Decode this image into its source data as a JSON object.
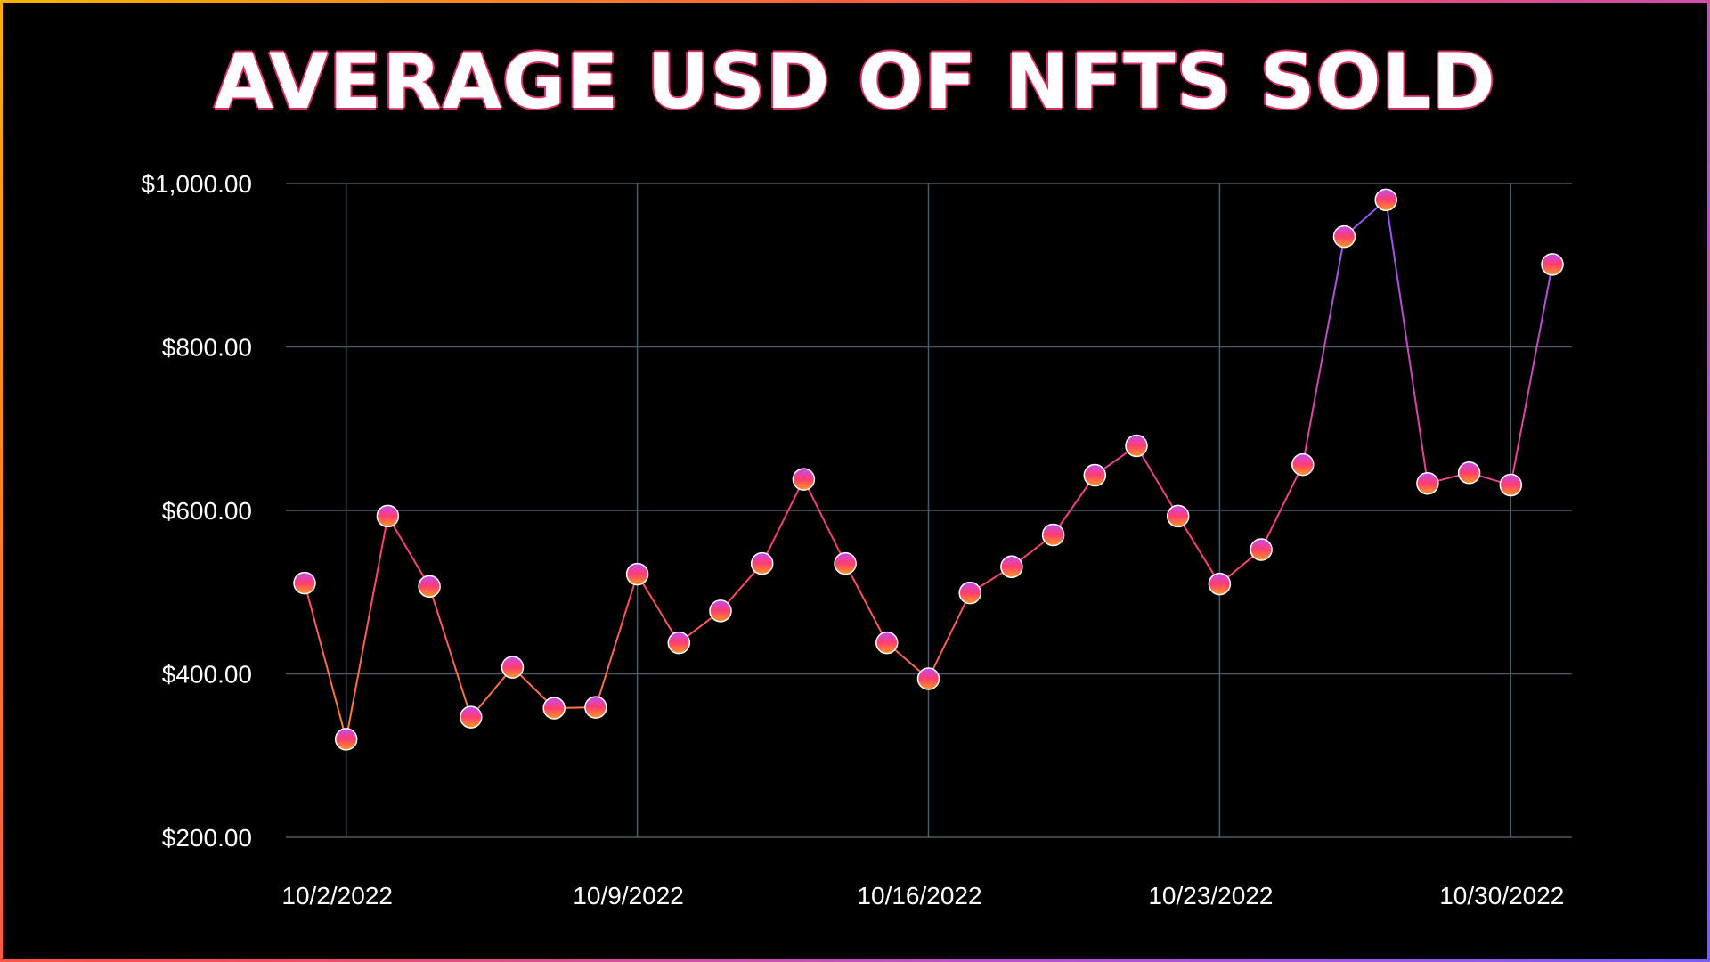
{
  "chart_data": {
    "type": "line",
    "title": "AVERAGE USD OF NFTS SOLD",
    "xlabel": "",
    "ylabel": "",
    "ylim": [
      200,
      1000
    ],
    "xlim": [
      "2022-10-01",
      "2022-10-31"
    ],
    "y_ticks": [
      {
        "value": 1000,
        "label": "$1,000.00"
      },
      {
        "value": 800,
        "label": "$800.00"
      },
      {
        "value": 600,
        "label": "$600.00"
      },
      {
        "value": 400,
        "label": "$400.00"
      },
      {
        "value": 200,
        "label": "$200.00"
      }
    ],
    "x_ticks": [
      {
        "value": "2022-10-02",
        "label": "10/2/2022"
      },
      {
        "value": "2022-10-09",
        "label": "10/9/2022"
      },
      {
        "value": "2022-10-16",
        "label": "10/16/2022"
      },
      {
        "value": "2022-10-23",
        "label": "10/23/2022"
      },
      {
        "value": "2022-10-30",
        "label": "10/30/2022"
      }
    ],
    "grid": true,
    "legend": "none",
    "series": [
      {
        "x": [
          "2022-10-01",
          "2022-10-02",
          "2022-10-03",
          "2022-10-04",
          "2022-10-05",
          "2022-10-06",
          "2022-10-07",
          "2022-10-08",
          "2022-10-09",
          "2022-10-10",
          "2022-10-11",
          "2022-10-12",
          "2022-10-13",
          "2022-10-14",
          "2022-10-15",
          "2022-10-16",
          "2022-10-17",
          "2022-10-18",
          "2022-10-19",
          "2022-10-20",
          "2022-10-21",
          "2022-10-22",
          "2022-10-23",
          "2022-10-24",
          "2022-10-25",
          "2022-10-26",
          "2022-10-27",
          "2022-10-28",
          "2022-10-29",
          "2022-10-30",
          "2022-10-31"
        ],
        "values": [
          511,
          320,
          593,
          507,
          347,
          408,
          358,
          359,
          522,
          438,
          477,
          535,
          638,
          535,
          438,
          394,
          499,
          531,
          570,
          643,
          679,
          593,
          510,
          552,
          656,
          935,
          980,
          633,
          646,
          631,
          901
        ]
      }
    ],
    "colors": {
      "grid": "#4a5a66",
      "line_low": "#f5a623",
      "line_mid": "#ff3d6e",
      "line_high": "#8a5cff",
      "marker_top": "#c04cf0",
      "marker_bottom": "#ff9a1f"
    }
  }
}
